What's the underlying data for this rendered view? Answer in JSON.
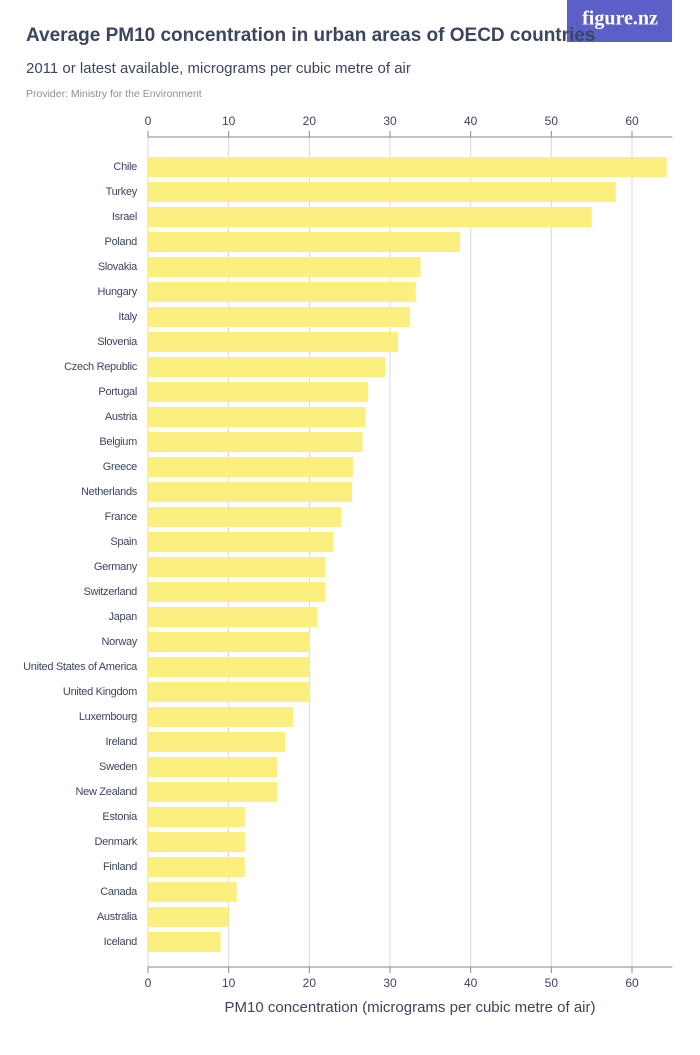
{
  "brand": "figure.nz",
  "chart_data": {
    "type": "barh",
    "title": "Average PM10 concentration in urban areas of OECD countries",
    "subtitle": "2011 or latest available, micrograms per cubic metre of air",
    "note": "Provider: Ministry for the Environment",
    "xlabel": "PM10 concentration (micrograms per cubic metre of air)",
    "categories": [
      "Chile",
      "Turkey",
      "Israel",
      "Poland",
      "Slovakia",
      "Hungary",
      "Italy",
      "Slovenia",
      "Czech Republic",
      "Portugal",
      "Austria",
      "Belgium",
      "Greece",
      "Netherlands",
      "France",
      "Spain",
      "Germany",
      "Switzerland",
      "Japan",
      "Norway",
      "United States of America",
      "United Kingdom",
      "Luxembourg",
      "Ireland",
      "Sweden",
      "New Zealand",
      "Estonia",
      "Denmark",
      "Finland",
      "Canada",
      "Australia",
      "Iceland"
    ],
    "values": [
      64.3,
      58,
      55,
      38.7,
      33.8,
      33.2,
      32.5,
      31,
      29.4,
      27.3,
      26.9,
      26.6,
      25.4,
      25.3,
      24,
      23,
      22,
      22,
      21,
      20,
      20,
      20,
      18,
      17,
      16,
      16,
      12,
      12,
      12,
      11,
      10,
      9
    ],
    "color": "#fbef7f",
    "xlim": [
      0,
      65
    ],
    "xticks": [
      0,
      10,
      20,
      30,
      40,
      50,
      60
    ],
    "grid": true
  }
}
